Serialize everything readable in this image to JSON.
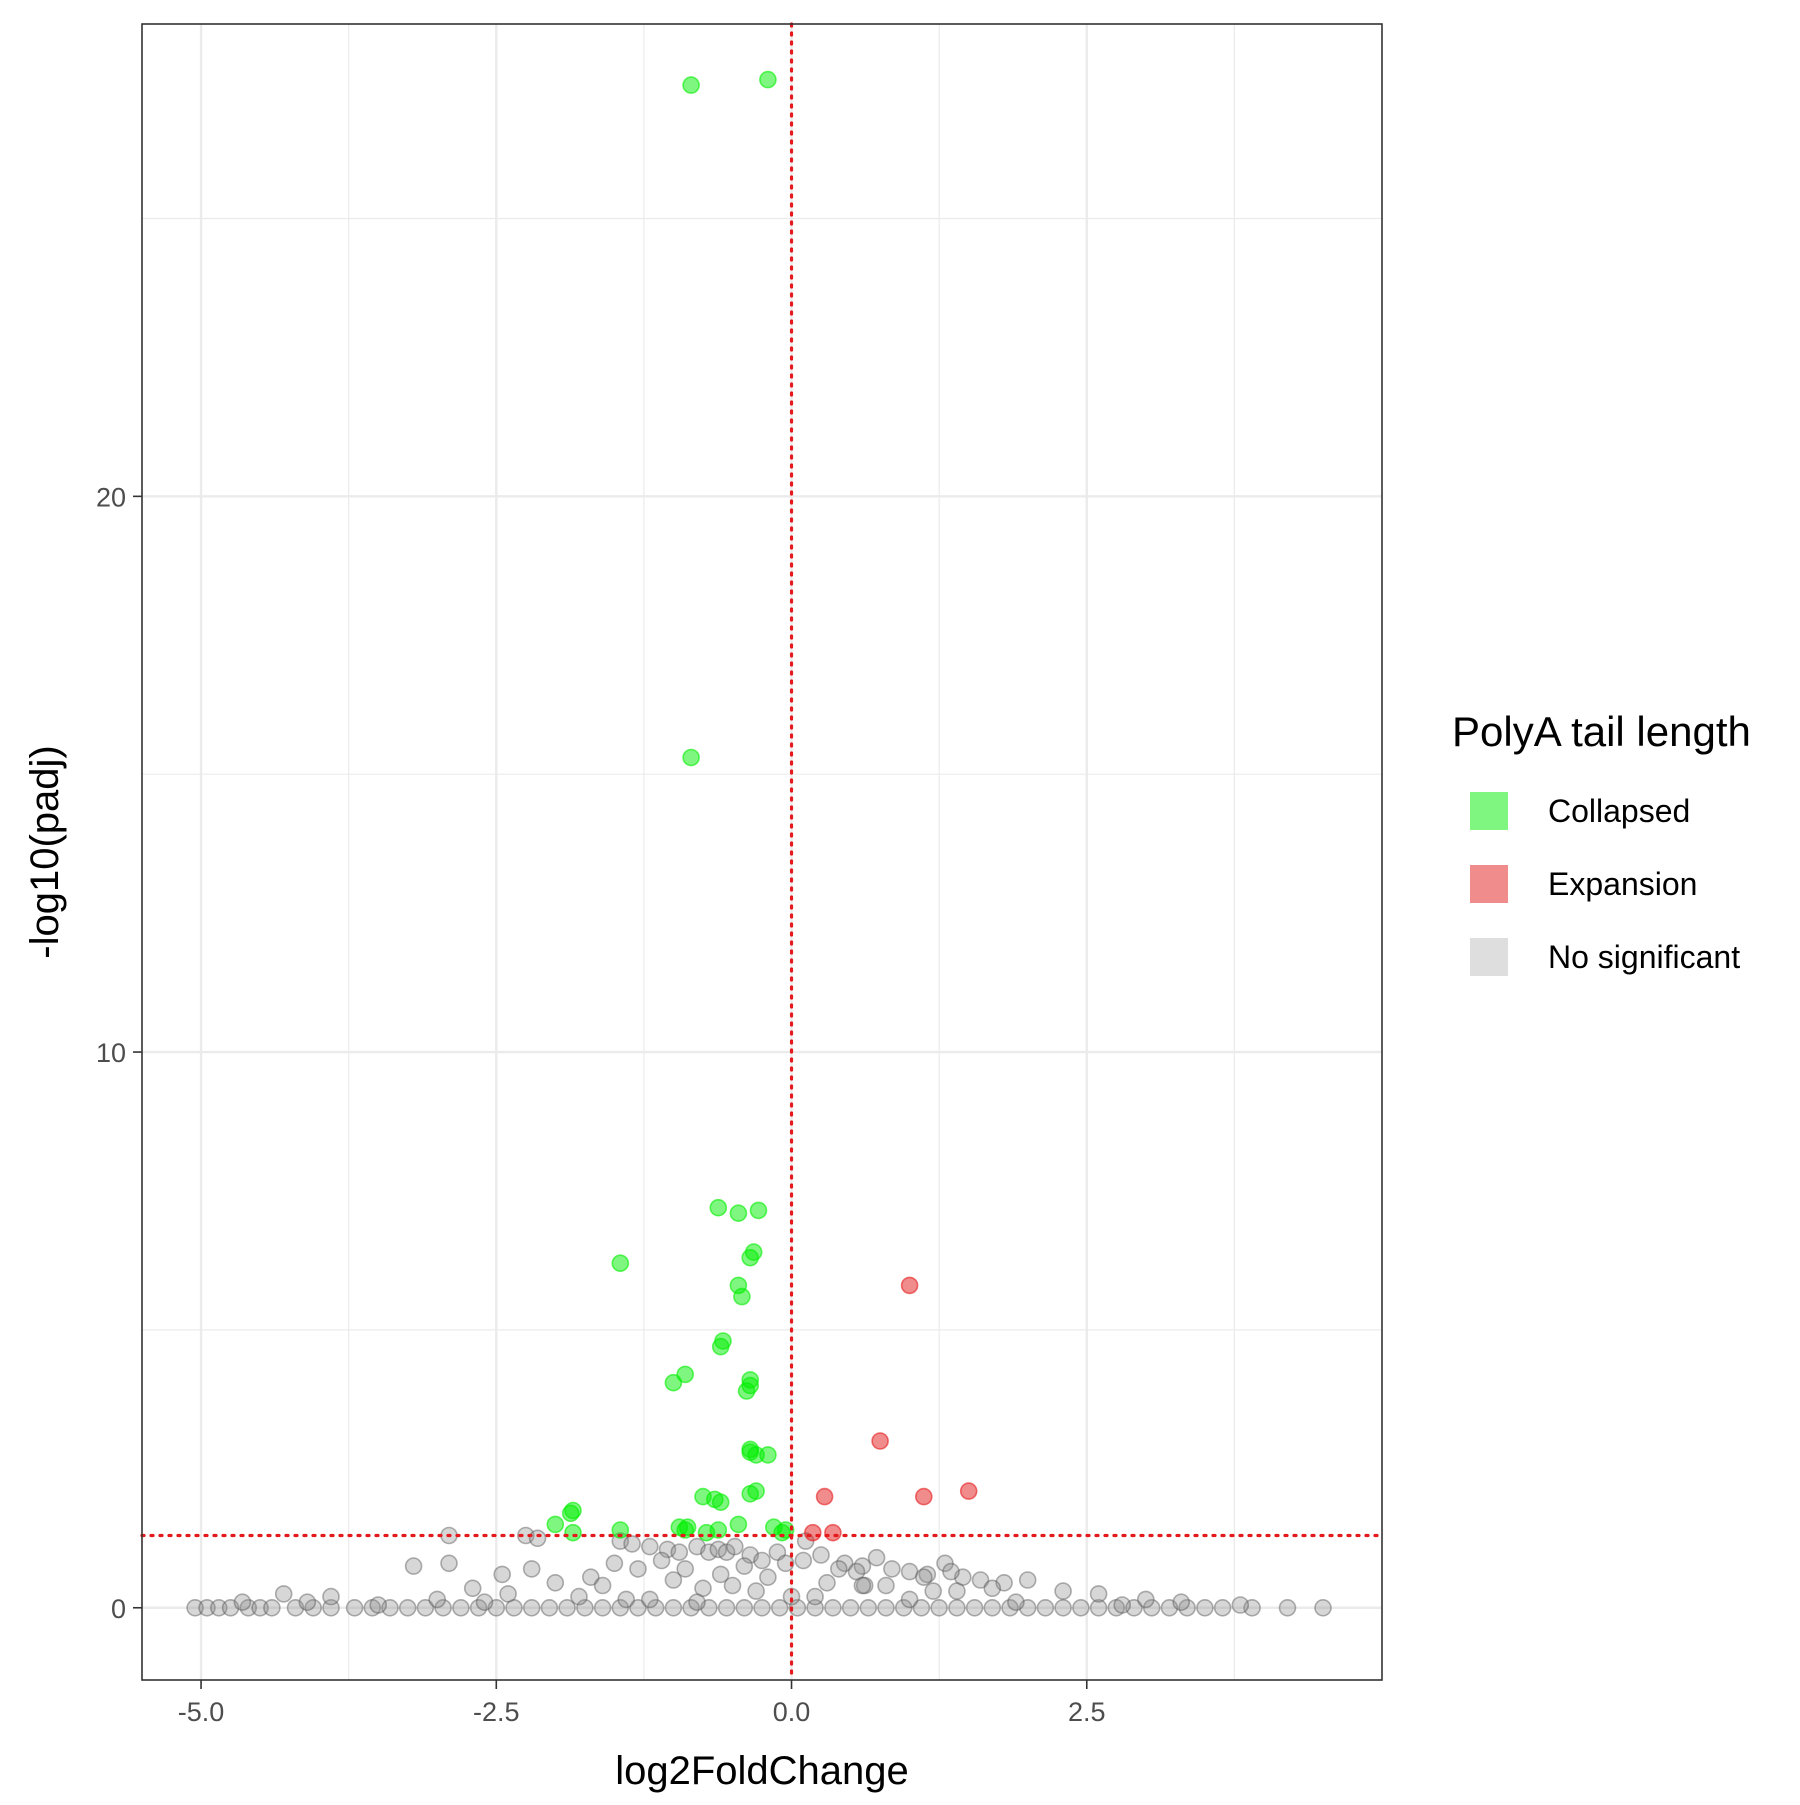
{
  "chart_data": {
    "type": "scatter",
    "title": "",
    "xlabel": "log2FoldChange",
    "ylabel": "-log10(padj)",
    "xlim": [
      -5.5,
      5.0
    ],
    "ylim": [
      -1.3,
      28.5
    ],
    "x_ticks": [
      -5.0,
      -2.5,
      0.0,
      2.5
    ],
    "x_tick_labels": [
      "-5.0",
      "-2.5",
      "0.0",
      "2.5"
    ],
    "y_ticks": [
      0,
      10,
      20
    ],
    "y_tick_labels": [
      "0",
      "10",
      "20"
    ],
    "y_minor_ticks": [
      5,
      15,
      25
    ],
    "x_minor_ticks": [
      -3.75,
      -1.25,
      1.25,
      3.75
    ],
    "grid": true,
    "reference_lines": {
      "vertical_x": 0,
      "horizontal_y": 1.3,
      "color": "#E41A1C",
      "style": "dotted"
    },
    "legend": {
      "title": "PolyA tail length",
      "position": "right",
      "entries": [
        {
          "label": "Collapsed",
          "color": "#00EE00"
        },
        {
          "label": "Expansion",
          "color": "#E41A1C"
        },
        {
          "label": "No significant",
          "color": "#BDBDBD"
        }
      ]
    },
    "series": [
      {
        "name": "Collapsed",
        "color": "#00EE00",
        "x": [
          -0.85,
          -0.2,
          -0.85,
          -0.62,
          -0.45,
          -0.28,
          -1.45,
          -0.35,
          -0.32,
          -0.45,
          -0.42,
          -0.58,
          -0.6,
          -0.9,
          -1.0,
          -0.35,
          -0.35,
          -0.38,
          -0.35,
          -0.35,
          -0.3,
          -0.2,
          -0.75,
          -0.65,
          -0.6,
          -0.3,
          -0.35,
          -1.85,
          -1.87,
          -2.0,
          -1.85,
          -1.45,
          -0.95,
          -0.9,
          -0.88,
          -0.72,
          -0.62,
          -0.45,
          -0.15,
          -0.08,
          -0.05
        ],
        "y": [
          27.4,
          27.5,
          15.3,
          7.2,
          7.1,
          7.15,
          6.2,
          6.3,
          6.4,
          5.8,
          5.6,
          4.8,
          4.7,
          4.2,
          4.05,
          4.1,
          4.0,
          3.9,
          2.85,
          2.8,
          2.75,
          2.75,
          2.0,
          1.95,
          1.9,
          2.1,
          2.05,
          1.75,
          1.7,
          1.5,
          1.35,
          1.4,
          1.45,
          1.4,
          1.45,
          1.35,
          1.4,
          1.5,
          1.45,
          1.35,
          1.4
        ]
      },
      {
        "name": "Expansion",
        "color": "#E41A1C",
        "x": [
          1.0,
          0.75,
          1.5,
          1.12,
          0.28,
          0.18,
          0.35
        ],
        "y": [
          5.8,
          3.0,
          2.1,
          2.0,
          2.0,
          1.35,
          1.35
        ]
      },
      {
        "name": "No significant",
        "color": "#BDBDBD",
        "x": [
          -5.05,
          -4.95,
          -4.85,
          -4.75,
          -4.6,
          -4.5,
          -4.4,
          -4.2,
          -4.05,
          -3.9,
          -3.7,
          -3.55,
          -3.4,
          -3.25,
          -3.1,
          -2.95,
          -2.8,
          -2.65,
          -2.5,
          -2.35,
          -2.2,
          -2.05,
          -1.9,
          -1.75,
          -1.6,
          -1.45,
          -1.3,
          -1.15,
          -1.0,
          -0.85,
          -0.7,
          -0.55,
          -0.4,
          -0.25,
          -0.1,
          0.05,
          0.2,
          0.35,
          0.5,
          0.65,
          0.8,
          0.95,
          1.1,
          1.25,
          1.4,
          1.55,
          1.7,
          1.85,
          2.0,
          2.15,
          2.3,
          2.45,
          2.6,
          2.75,
          2.9,
          3.05,
          3.2,
          3.35,
          3.5,
          3.65,
          3.9,
          4.2,
          4.5,
          -2.9,
          -2.25,
          -2.15,
          -1.45,
          -1.35,
          -1.2,
          -1.05,
          -0.95,
          -0.8,
          -0.7,
          -0.62,
          -0.55,
          -0.48,
          -0.35,
          -0.25,
          -0.12,
          0.12,
          0.25,
          0.45,
          0.6,
          0.72,
          0.85,
          1.0,
          1.15,
          1.3,
          1.45,
          1.6,
          1.8,
          2.0,
          -2.9,
          -2.45,
          -2.2,
          -1.7,
          -1.5,
          -1.3,
          -1.1,
          -0.9,
          -0.6,
          -0.4,
          -0.05,
          0.1,
          0.4,
          0.55,
          1.12,
          1.35,
          0.62,
          -3.2,
          -2.7,
          -2.0,
          -1.6,
          -1.0,
          -0.75,
          -0.5,
          -0.2,
          0.3,
          0.8,
          1.2,
          1.7,
          2.3,
          -4.3,
          -3.9,
          -3.0,
          -2.4,
          -1.8,
          -1.2,
          -0.3,
          0.0,
          0.6,
          1.4,
          2.6,
          3.0,
          -4.65,
          -4.1,
          -3.5,
          -2.6,
          -1.4,
          -0.8,
          0.2,
          1.0,
          1.9,
          2.8,
          3.3,
          3.8
        ],
        "y": [
          0,
          0,
          0,
          0,
          0,
          0,
          0,
          0,
          0,
          0,
          0,
          0,
          0,
          0,
          0,
          0,
          0,
          0,
          0,
          0,
          0,
          0,
          0,
          0,
          0,
          0,
          0,
          0,
          0,
          0,
          0,
          0,
          0,
          0,
          0,
          0,
          0,
          0,
          0,
          0,
          0,
          0,
          0,
          0,
          0,
          0,
          0,
          0,
          0,
          0,
          0,
          0,
          0,
          0,
          0,
          0,
          0,
          0,
          0,
          0,
          0,
          0,
          0,
          1.3,
          1.3,
          1.25,
          1.2,
          1.15,
          1.1,
          1.05,
          1.0,
          1.1,
          1.0,
          1.05,
          1.0,
          1.1,
          0.95,
          0.85,
          1.0,
          1.2,
          0.95,
          0.8,
          0.75,
          0.9,
          0.7,
          0.65,
          0.6,
          0.8,
          0.55,
          0.5,
          0.45,
          0.5,
          0.8,
          0.6,
          0.7,
          0.55,
          0.8,
          0.7,
          0.85,
          0.7,
          0.6,
          0.75,
          0.8,
          0.85,
          0.7,
          0.65,
          0.55,
          0.65,
          0.4,
          0.75,
          0.35,
          0.45,
          0.4,
          0.5,
          0.35,
          0.4,
          0.55,
          0.45,
          0.4,
          0.3,
          0.35,
          0.3,
          0.25,
          0.2,
          0.15,
          0.25,
          0.2,
          0.15,
          0.3,
          0.2,
          0.4,
          0.3,
          0.25,
          0.15,
          0.1,
          0.1,
          0.05,
          0.1,
          0.15,
          0.1,
          0.2,
          0.15,
          0.1,
          0.05,
          0.1,
          0.05
        ]
      }
    ]
  }
}
